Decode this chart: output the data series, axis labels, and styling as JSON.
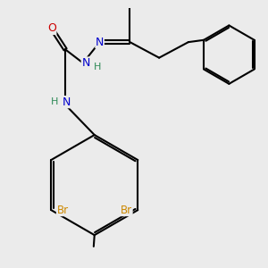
{
  "background_color": "#ebebeb",
  "bond_color": "#000000",
  "bond_width": 1.5,
  "atom_colors": {
    "N": "#0000cc",
    "O": "#cc0000",
    "Br": "#cc8800",
    "H_label": "#2e8b57",
    "C": "#000000"
  },
  "figsize": [
    3.0,
    3.0
  ],
  "dpi": 100
}
